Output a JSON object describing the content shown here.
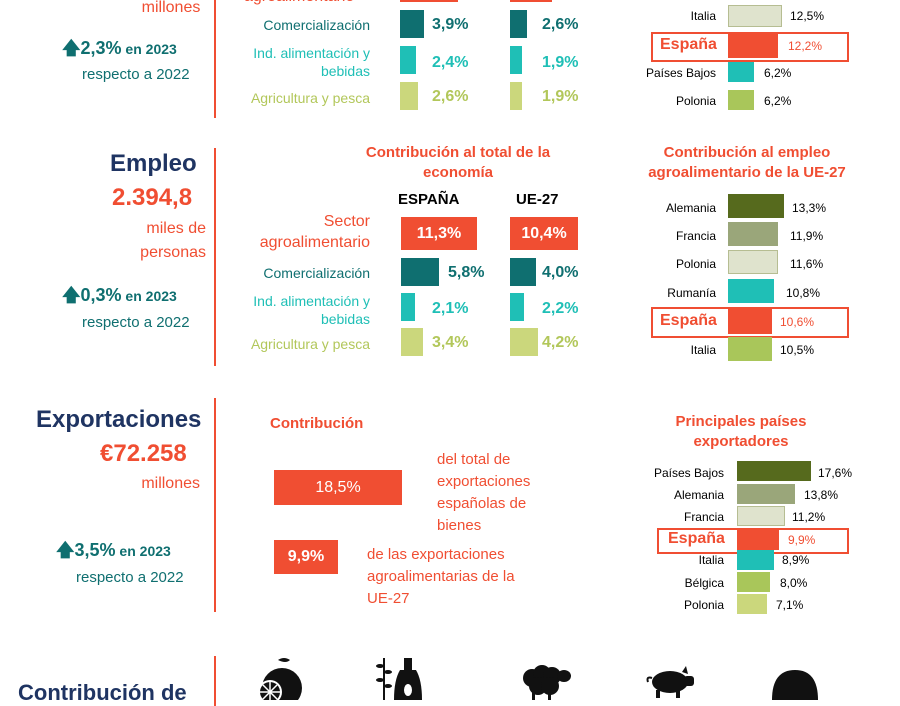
{
  "colors": {
    "navy": "#1f3462",
    "orange": "#f04e32",
    "teal": "#0f6f70",
    "turquoise": "#1fbfb6",
    "olive": "#b2c75a",
    "darkolive": "#566a1d",
    "greyolive": "#9aa67a",
    "pale": "#dfe3cd"
  },
  "top": {
    "millones": "millones",
    "growth_value": "2,3%",
    "growth_year": " en 2023",
    "growth_ref": "respecto a 2022",
    "sector_label_partial": "agroalimentario",
    "rows": [
      {
        "label": "Comercialización",
        "es": "3,9%",
        "ue": "2,6%"
      },
      {
        "label": "Ind. alimentación y bebidas",
        "es": "2,4%",
        "ue": "1,9%"
      },
      {
        "label": "Agricultura y pesca",
        "es": "2,6%",
        "ue": "1,9%"
      }
    ],
    "countries": [
      {
        "name": "Italia",
        "value": "12,5%"
      },
      {
        "name": "España",
        "value": "12,2%"
      },
      {
        "name": "Países Bajos",
        "value": "6,2%"
      },
      {
        "name": "Polonia",
        "value": "6,2%"
      }
    ]
  },
  "empleo": {
    "title": "Empleo",
    "value": "2.394,8",
    "unit1": "miles de",
    "unit2": "personas",
    "growth_value": "0,3%",
    "growth_year": " en 2023",
    "growth_ref": "respecto a 2022",
    "contrib_header": "Contribución al total de la economía",
    "col_es": "ESPAÑA",
    "col_ue": "UE-27",
    "sector_label": "Sector agroalimentario",
    "sector_es": "11,3%",
    "sector_ue": "10,4%",
    "rows": [
      {
        "label": "Comercialización",
        "es": "5,8%",
        "ue": "4,0%"
      },
      {
        "label": "Ind. alimentación y bebidas",
        "es": "2,1%",
        "ue": "2,2%"
      },
      {
        "label": "Agricultura y pesca",
        "es": "3,4%",
        "ue": "4,2%"
      }
    ],
    "ranking_header": "Contribución al empleo agroalimentario de la UE-27",
    "countries": [
      {
        "name": "Alemania",
        "value": "13,3%"
      },
      {
        "name": "Francia",
        "value": "11,9%"
      },
      {
        "name": "Polonia",
        "value": "11,6%"
      },
      {
        "name": "Rumanía",
        "value": "10,8%"
      },
      {
        "name": "España",
        "value": "10,6%"
      },
      {
        "name": "Italia",
        "value": "10,5%"
      }
    ]
  },
  "export": {
    "title": "Exportaciones",
    "value": "€72.258",
    "unit": "millones",
    "growth_value": "3,5%",
    "growth_year": " en 2023",
    "growth_ref": "respecto a 2022",
    "contrib_header": "Contribución",
    "c1_value": "18,5%",
    "c1_text": "del total de exportaciones españolas de bienes",
    "c2_value": "9,9%",
    "c2_text": "de las exportaciones agroalimentarias de la UE-27",
    "ranking_header": "Principales países exportadores",
    "countries": [
      {
        "name": "Países Bajos",
        "value": "17,6%"
      },
      {
        "name": "Alemania",
        "value": "13,8%"
      },
      {
        "name": "Francia",
        "value": "11,2%"
      },
      {
        "name": "España",
        "value": "9,9%"
      },
      {
        "name": "Italia",
        "value": "8,9%"
      },
      {
        "name": "Bélgica",
        "value": "8,0%"
      },
      {
        "name": "Polonia",
        "value": "7,1%"
      }
    ]
  },
  "bottom": {
    "title_partial": "Contribución de",
    "icons": [
      "fruit-icon",
      "olive-oil-icon",
      "sheep-icon",
      "pig-icon",
      "dome-icon"
    ]
  }
}
